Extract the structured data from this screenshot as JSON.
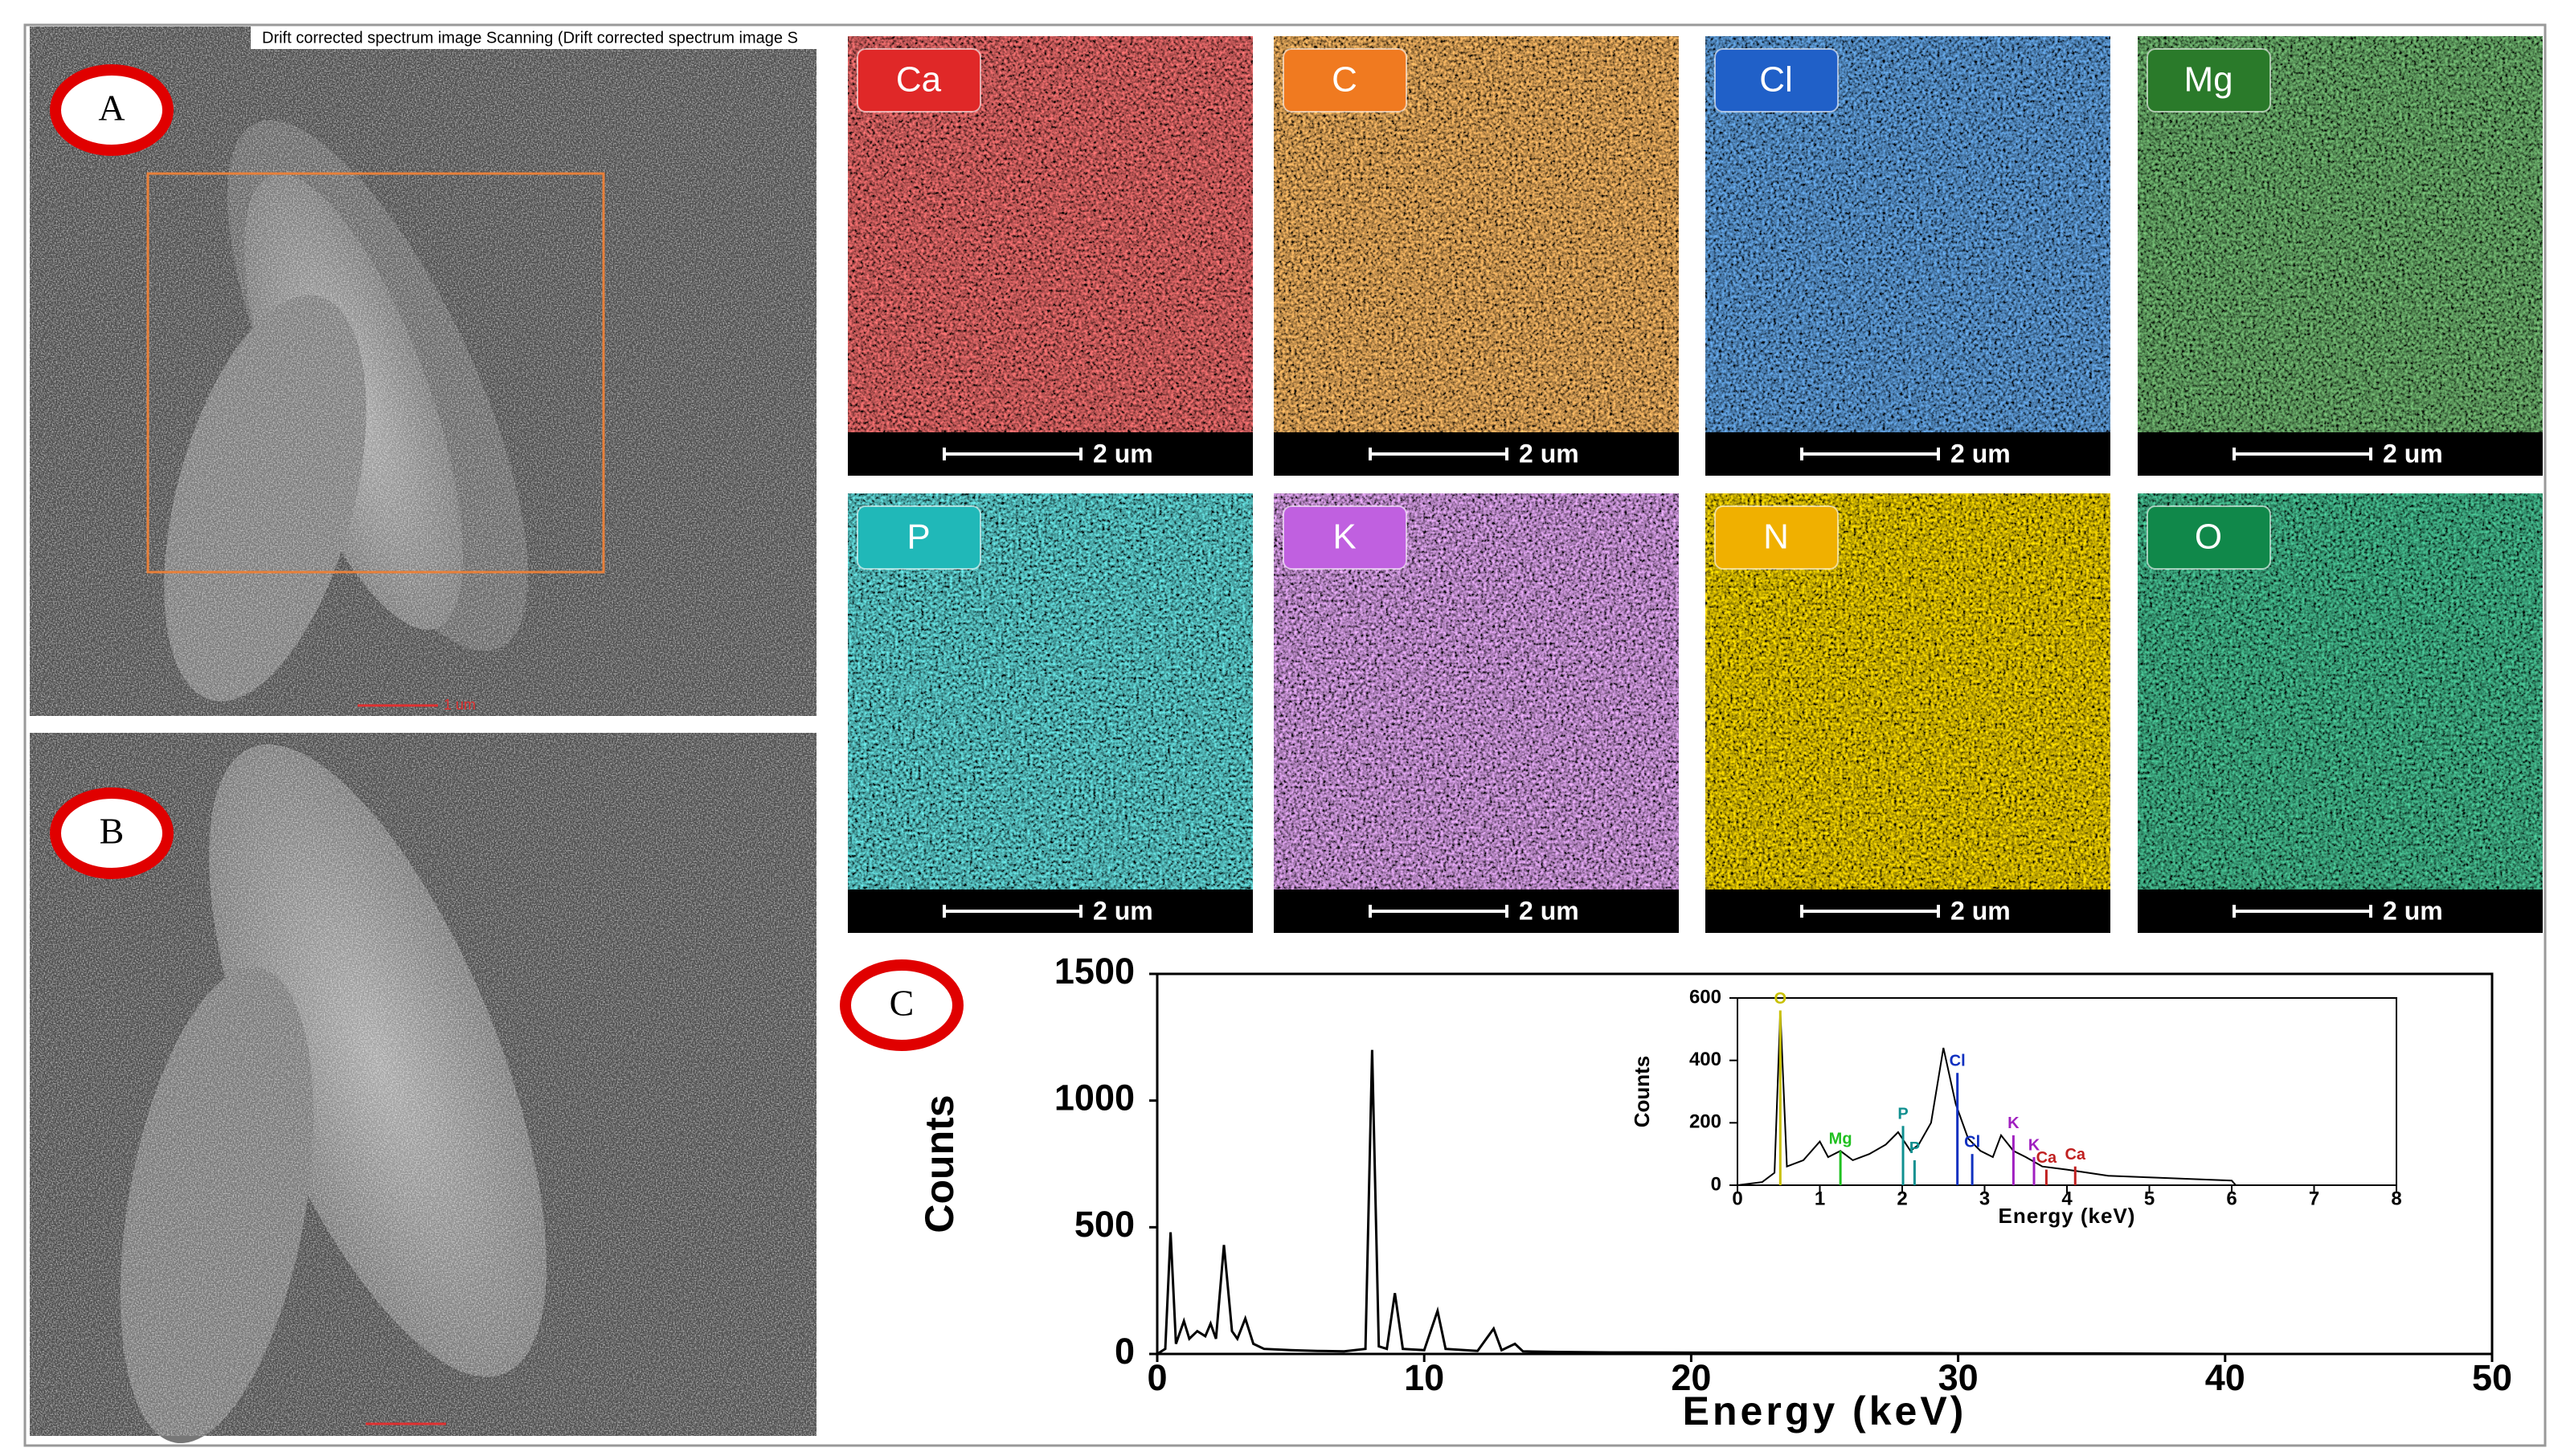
{
  "panels": {
    "a": {
      "label": "A",
      "caption": "Drift corrected spectrum image Scanning (Drift corrected spectrum image S",
      "scale_bar": "1 um"
    },
    "b": {
      "label": "B"
    },
    "c": {
      "label": "C"
    }
  },
  "maps": [
    {
      "element": "Ca",
      "color": "#e02828",
      "scale_bar": "2 um"
    },
    {
      "element": "C",
      "color": "#f07a20",
      "scale_bar": "2 um"
    },
    {
      "element": "Cl",
      "color": "#2060c8",
      "scale_bar": "2 um"
    },
    {
      "element": "Mg",
      "color": "#2a7a2a",
      "scale_bar": "2 um"
    },
    {
      "element": "P",
      "color": "#20b8b8",
      "scale_bar": "2 um"
    },
    {
      "element": "K",
      "color": "#c060e0",
      "scale_bar": "2 um"
    },
    {
      "element": "N",
      "color": "#f0b000",
      "scale_bar": "2 um"
    },
    {
      "element": "O",
      "color": "#10884a",
      "scale_bar": "2 um"
    }
  ],
  "chart_data": [
    {
      "type": "line",
      "x_label": "Energy (keV)",
      "y_label": "Counts",
      "color": "#000000",
      "x": [
        0,
        0.3,
        0.5,
        0.7,
        1.0,
        1.2,
        1.5,
        1.8,
        2.0,
        2.2,
        2.5,
        2.8,
        3.0,
        3.3,
        3.6,
        4.0,
        5,
        6,
        7,
        7.8,
        8.05,
        8.3,
        8.6,
        8.9,
        9.2,
        10,
        10.5,
        10.8,
        12,
        12.6,
        12.9,
        13.4,
        13.7,
        15,
        17,
        20,
        25,
        30,
        35,
        40
      ],
      "values": [
        0,
        20,
        480,
        40,
        130,
        60,
        90,
        70,
        120,
        60,
        430,
        90,
        60,
        140,
        40,
        20,
        15,
        12,
        10,
        20,
        1200,
        30,
        20,
        240,
        20,
        15,
        170,
        20,
        12,
        100,
        15,
        40,
        10,
        8,
        6,
        5,
        4,
        3,
        2,
        0
      ],
      "xlim": [
        0,
        50
      ],
      "xticks": [
        0,
        10,
        20,
        30,
        40,
        50
      ],
      "ylim": [
        0,
        1500
      ],
      "yticks": [
        0,
        500,
        1000,
        1500
      ]
    },
    {
      "type": "line",
      "x_label": "Energy (keV)",
      "y_label": "Counts",
      "color": "#000000",
      "x": [
        0,
        0.3,
        0.45,
        0.52,
        0.6,
        0.8,
        1.0,
        1.1,
        1.25,
        1.4,
        1.6,
        1.8,
        1.95,
        2.1,
        2.2,
        2.35,
        2.5,
        2.65,
        2.8,
        2.95,
        3.1,
        3.2,
        3.35,
        3.5,
        3.7,
        4.0,
        4.5,
        5,
        5.5,
        6,
        6.05
      ],
      "values": [
        0,
        10,
        40,
        560,
        60,
        80,
        140,
        90,
        110,
        80,
        100,
        130,
        170,
        110,
        130,
        200,
        440,
        260,
        150,
        110,
        90,
        160,
        110,
        90,
        60,
        50,
        30,
        25,
        20,
        15,
        0
      ],
      "xlim": [
        0,
        8
      ],
      "xticks": [
        0,
        1,
        2,
        3,
        4,
        5,
        6,
        7,
        8
      ],
      "ylim": [
        0,
        600
      ],
      "yticks": [
        0,
        200,
        400,
        600
      ],
      "annotations": [
        {
          "text": "O",
          "x": 0.52,
          "y": 560,
          "color": "#c8c000"
        },
        {
          "text": "Mg",
          "x": 1.25,
          "y": 110,
          "color": "#20c020"
        },
        {
          "text": "P",
          "x": 2.01,
          "y": 190,
          "color": "#109090"
        },
        {
          "text": "P",
          "x": 2.15,
          "y": 80,
          "color": "#109090"
        },
        {
          "text": "Cl",
          "x": 2.67,
          "y": 360,
          "color": "#1030c0"
        },
        {
          "text": "Cl",
          "x": 2.85,
          "y": 100,
          "color": "#1030c0"
        },
        {
          "text": "K",
          "x": 3.35,
          "y": 160,
          "color": "#a020c0"
        },
        {
          "text": "K",
          "x": 3.6,
          "y": 90,
          "color": "#a020c0"
        },
        {
          "text": "Ca",
          "x": 3.75,
          "y": 50,
          "color": "#c02020"
        },
        {
          "text": "Ca",
          "x": 4.1,
          "y": 60,
          "color": "#c02020"
        }
      ]
    }
  ]
}
